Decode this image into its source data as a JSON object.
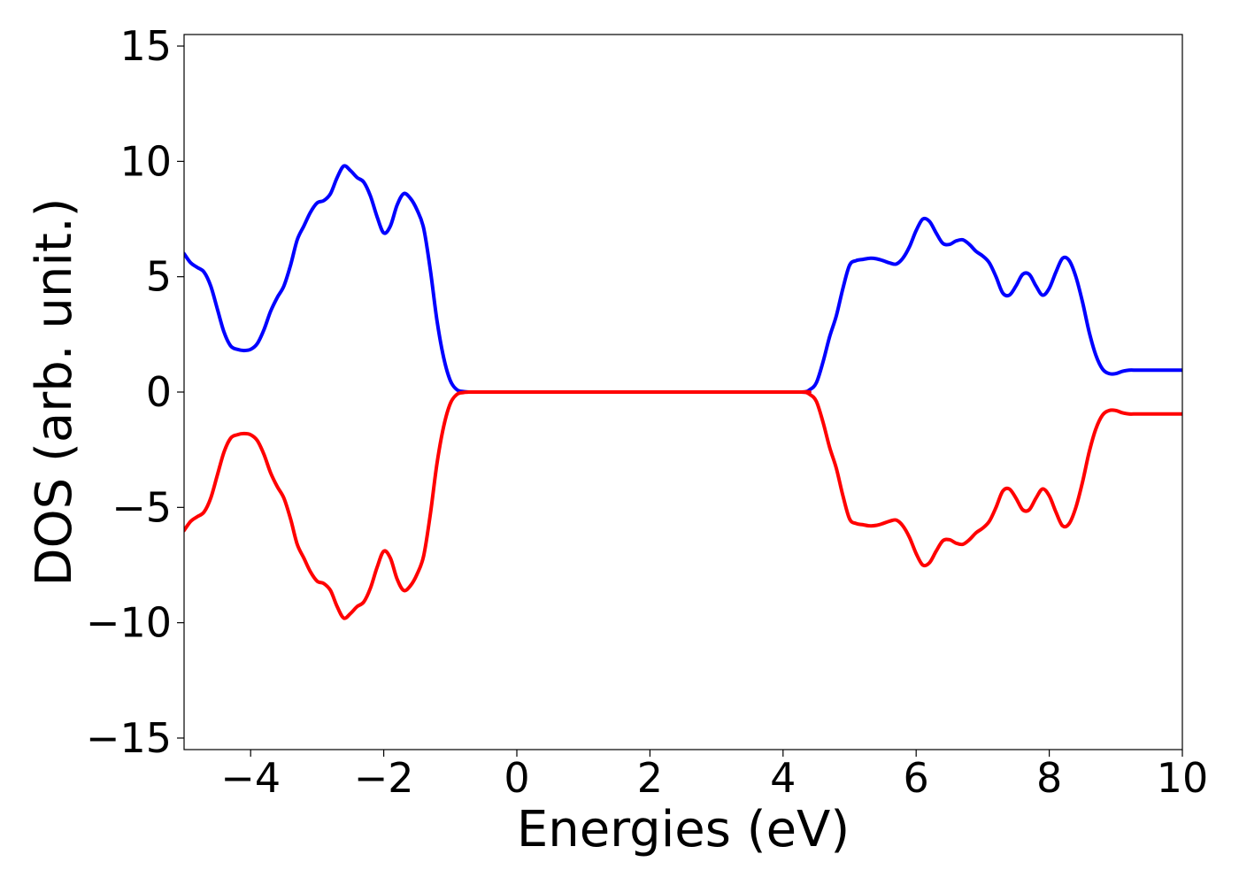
{
  "chart_data": {
    "type": "line",
    "title": "",
    "xlabel": "Energies (eV)",
    "ylabel": "DOS (arb. unit.)",
    "xlim": [
      -5,
      10
    ],
    "ylim": [
      -15.5,
      15.5
    ],
    "xticks": [
      -4,
      -2,
      0,
      2,
      4,
      6,
      8,
      10
    ],
    "yticks": [
      -15,
      -10,
      -5,
      0,
      5,
      10,
      15
    ],
    "xtick_labels": [
      "−4",
      "−2",
      "0",
      "2",
      "4",
      "6",
      "8",
      "10"
    ],
    "ytick_labels": [
      "−15",
      "−10",
      "−5",
      "0",
      "5",
      "10",
      "15"
    ],
    "grid": false,
    "legend": "none",
    "series": [
      {
        "color": "#0000ff",
        "x": [
          -5.0,
          -4.9,
          -4.8,
          -4.7,
          -4.6,
          -4.5,
          -4.4,
          -4.3,
          -4.2,
          -4.1,
          -4.0,
          -3.9,
          -3.8,
          -3.7,
          -3.6,
          -3.5,
          -3.4,
          -3.3,
          -3.2,
          -3.1,
          -3.0,
          -2.9,
          -2.8,
          -2.7,
          -2.6,
          -2.5,
          -2.4,
          -2.3,
          -2.2,
          -2.1,
          -2.0,
          -1.9,
          -1.8,
          -1.7,
          -1.6,
          -1.5,
          -1.4,
          -1.3,
          -1.2,
          -1.1,
          -1.0,
          -0.9,
          -0.8,
          -0.7,
          -0.6,
          -0.5,
          0.0,
          4.0,
          4.3,
          4.4,
          4.5,
          4.6,
          4.7,
          4.8,
          4.9,
          5.0,
          5.1,
          5.2,
          5.3,
          5.4,
          5.5,
          5.6,
          5.7,
          5.8,
          5.9,
          6.0,
          6.1,
          6.2,
          6.3,
          6.4,
          6.5,
          6.6,
          6.7,
          6.8,
          6.9,
          7.0,
          7.1,
          7.2,
          7.3,
          7.4,
          7.5,
          7.6,
          7.7,
          7.8,
          7.9,
          8.0,
          8.1,
          8.2,
          8.3,
          8.4,
          8.5,
          8.6,
          8.7,
          8.8,
          8.9,
          9.0,
          9.1,
          9.2,
          9.3,
          9.4,
          9.5,
          9.6,
          9.7,
          9.8,
          9.9,
          10.0
        ],
        "y": [
          6.0,
          5.6,
          5.4,
          5.2,
          4.6,
          3.6,
          2.6,
          2.0,
          1.85,
          1.8,
          1.85,
          2.1,
          2.7,
          3.5,
          4.1,
          4.6,
          5.5,
          6.6,
          7.2,
          7.8,
          8.2,
          8.3,
          8.6,
          9.3,
          9.8,
          9.6,
          9.3,
          9.1,
          8.5,
          7.6,
          6.9,
          7.2,
          8.1,
          8.6,
          8.4,
          7.9,
          7.1,
          5.3,
          3.1,
          1.5,
          0.5,
          0.1,
          0.02,
          0.0,
          0.0,
          0.0,
          0.0,
          0.0,
          0.0,
          0.1,
          0.4,
          1.3,
          2.4,
          3.3,
          4.5,
          5.5,
          5.7,
          5.75,
          5.8,
          5.78,
          5.7,
          5.6,
          5.55,
          5.8,
          6.3,
          7.0,
          7.5,
          7.4,
          6.9,
          6.45,
          6.4,
          6.55,
          6.6,
          6.4,
          6.1,
          5.9,
          5.6,
          5.0,
          4.3,
          4.2,
          4.6,
          5.1,
          5.1,
          4.6,
          4.2,
          4.5,
          5.2,
          5.8,
          5.7,
          5.0,
          3.9,
          2.6,
          1.6,
          1.0,
          0.8,
          0.8,
          0.9,
          0.95,
          0.95,
          0.95,
          0.95,
          0.95,
          0.95,
          0.95,
          0.95,
          0.95
        ]
      },
      {
        "color": "#ff0000",
        "x": [
          -5.0,
          -4.9,
          -4.8,
          -4.7,
          -4.6,
          -4.5,
          -4.4,
          -4.3,
          -4.2,
          -4.1,
          -4.0,
          -3.9,
          -3.8,
          -3.7,
          -3.6,
          -3.5,
          -3.4,
          -3.3,
          -3.2,
          -3.1,
          -3.0,
          -2.9,
          -2.8,
          -2.7,
          -2.6,
          -2.5,
          -2.4,
          -2.3,
          -2.2,
          -2.1,
          -2.0,
          -1.9,
          -1.8,
          -1.7,
          -1.6,
          -1.5,
          -1.4,
          -1.3,
          -1.2,
          -1.1,
          -1.0,
          -0.9,
          -0.8,
          -0.7,
          -0.6,
          -0.5,
          0.0,
          4.0,
          4.3,
          4.4,
          4.5,
          4.6,
          4.7,
          4.8,
          4.9,
          5.0,
          5.1,
          5.2,
          5.3,
          5.4,
          5.5,
          5.6,
          5.7,
          5.8,
          5.9,
          6.0,
          6.1,
          6.2,
          6.3,
          6.4,
          6.5,
          6.6,
          6.7,
          6.8,
          6.9,
          7.0,
          7.1,
          7.2,
          7.3,
          7.4,
          7.5,
          7.6,
          7.7,
          7.8,
          7.9,
          8.0,
          8.1,
          8.2,
          8.3,
          8.4,
          8.5,
          8.6,
          8.7,
          8.8,
          8.9,
          9.0,
          9.1,
          9.2,
          9.3,
          9.4,
          9.5,
          9.6,
          9.7,
          9.8,
          9.9,
          10.0
        ],
        "y": [
          -6.0,
          -5.6,
          -5.4,
          -5.2,
          -4.6,
          -3.6,
          -2.6,
          -2.0,
          -1.85,
          -1.8,
          -1.85,
          -2.1,
          -2.7,
          -3.5,
          -4.1,
          -4.6,
          -5.5,
          -6.6,
          -7.2,
          -7.8,
          -8.2,
          -8.3,
          -8.6,
          -9.3,
          -9.8,
          -9.6,
          -9.3,
          -9.1,
          -8.5,
          -7.6,
          -6.9,
          -7.2,
          -8.1,
          -8.6,
          -8.4,
          -7.9,
          -7.1,
          -5.3,
          -3.1,
          -1.5,
          -0.5,
          -0.1,
          -0.02,
          0.0,
          0.0,
          0.0,
          0.0,
          0.0,
          0.0,
          -0.1,
          -0.4,
          -1.3,
          -2.4,
          -3.3,
          -4.5,
          -5.5,
          -5.7,
          -5.75,
          -5.8,
          -5.78,
          -5.7,
          -5.6,
          -5.55,
          -5.8,
          -6.3,
          -7.0,
          -7.5,
          -7.4,
          -6.9,
          -6.45,
          -6.4,
          -6.55,
          -6.6,
          -6.4,
          -6.1,
          -5.9,
          -5.6,
          -5.0,
          -4.3,
          -4.2,
          -4.6,
          -5.1,
          -5.1,
          -4.6,
          -4.2,
          -4.5,
          -5.2,
          -5.8,
          -5.7,
          -5.0,
          -3.9,
          -2.6,
          -1.6,
          -1.0,
          -0.8,
          -0.8,
          -0.9,
          -0.95,
          -0.95,
          -0.95,
          -0.95,
          -0.95,
          -0.95,
          -0.95,
          -0.95,
          -0.95
        ]
      }
    ]
  }
}
